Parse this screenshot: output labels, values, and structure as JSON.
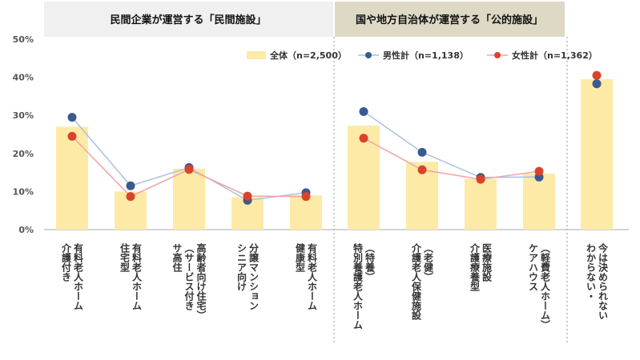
{
  "chart_data": {
    "type": "bar",
    "groups": [
      {
        "label": "民間企業が運営する「民間施設」",
        "color": "#f0f0f0"
      },
      {
        "label": "国や地方自治体が運営する「公的施設」",
        "color": "#ddd9c4"
      }
    ],
    "categories": [
      [
        "有料老人ホーム",
        "介護付き"
      ],
      [
        "有料老人ホーム",
        "住宅型"
      ],
      [
        "高齢者向け住宅）",
        "（サービス付き",
        "サ高住"
      ],
      [
        "分譲マンション",
        "シニア向け"
      ],
      [
        "有料老人ホーム",
        "健康型"
      ],
      [
        "（特養）",
        "特別養護老人ホーム"
      ],
      [
        "（老健）",
        "介護老人保健施設"
      ],
      [
        "医療施設",
        "介護療養型"
      ],
      [
        "（軽費老人ホーム）",
        "ケアハウス"
      ],
      [
        "今は決められない",
        "わからない・"
      ]
    ],
    "series": [
      {
        "name": "全体（n=2,500）",
        "kind": "bar",
        "color": "#fdeaa7",
        "values": [
          27.0,
          10.0,
          16.0,
          8.5,
          9.0,
          27.3,
          17.8,
          13.3,
          14.7,
          39.5
        ]
      },
      {
        "name": "男性計（n=1,138）",
        "kind": "line",
        "color": "#3a5a8f",
        "line_color": "#a9c1df",
        "values": [
          29.5,
          11.5,
          16.3,
          7.7,
          9.7,
          31.0,
          20.3,
          13.7,
          13.8,
          38.3
        ]
      },
      {
        "name": "女性計（n=1,362）",
        "kind": "line",
        "color": "#d9432b",
        "line_color": "#f2a3a3",
        "values": [
          24.5,
          8.7,
          15.8,
          8.8,
          8.7,
          24.0,
          15.7,
          13.2,
          15.3,
          40.5
        ]
      }
    ],
    "segments": [
      [
        0,
        4
      ],
      [
        5,
        8
      ],
      [
        9,
        9
      ]
    ],
    "yticks": [
      "50%",
      "40%",
      "30%",
      "20%",
      "10%",
      "0%"
    ],
    "ylim": [
      0,
      50
    ],
    "grid": false,
    "legend_position": "top-center"
  }
}
